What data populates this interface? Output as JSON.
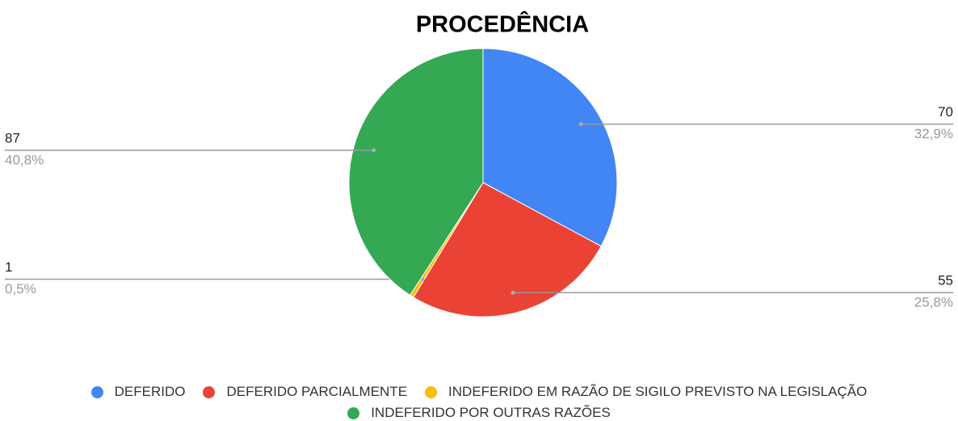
{
  "chart_data": {
    "type": "pie",
    "title": "PROCEDÊNCIA",
    "categories": [
      "DEFERIDO",
      "DEFERIDO PARCIALMENTE",
      "INDEFERIDO EM RAZÃO DE SIGILO PREVISTO NA LEGISLAÇÃO",
      "INDEFERIDO POR OUTRAS RAZÕES"
    ],
    "values": [
      70,
      55,
      1,
      87
    ],
    "percent_labels": [
      "32,9%",
      "25,8%",
      "0,5%",
      "40,8%"
    ],
    "colors": [
      "#4285f4",
      "#ea4335",
      "#fbbc04",
      "#34a853"
    ],
    "legend": "bottom"
  }
}
